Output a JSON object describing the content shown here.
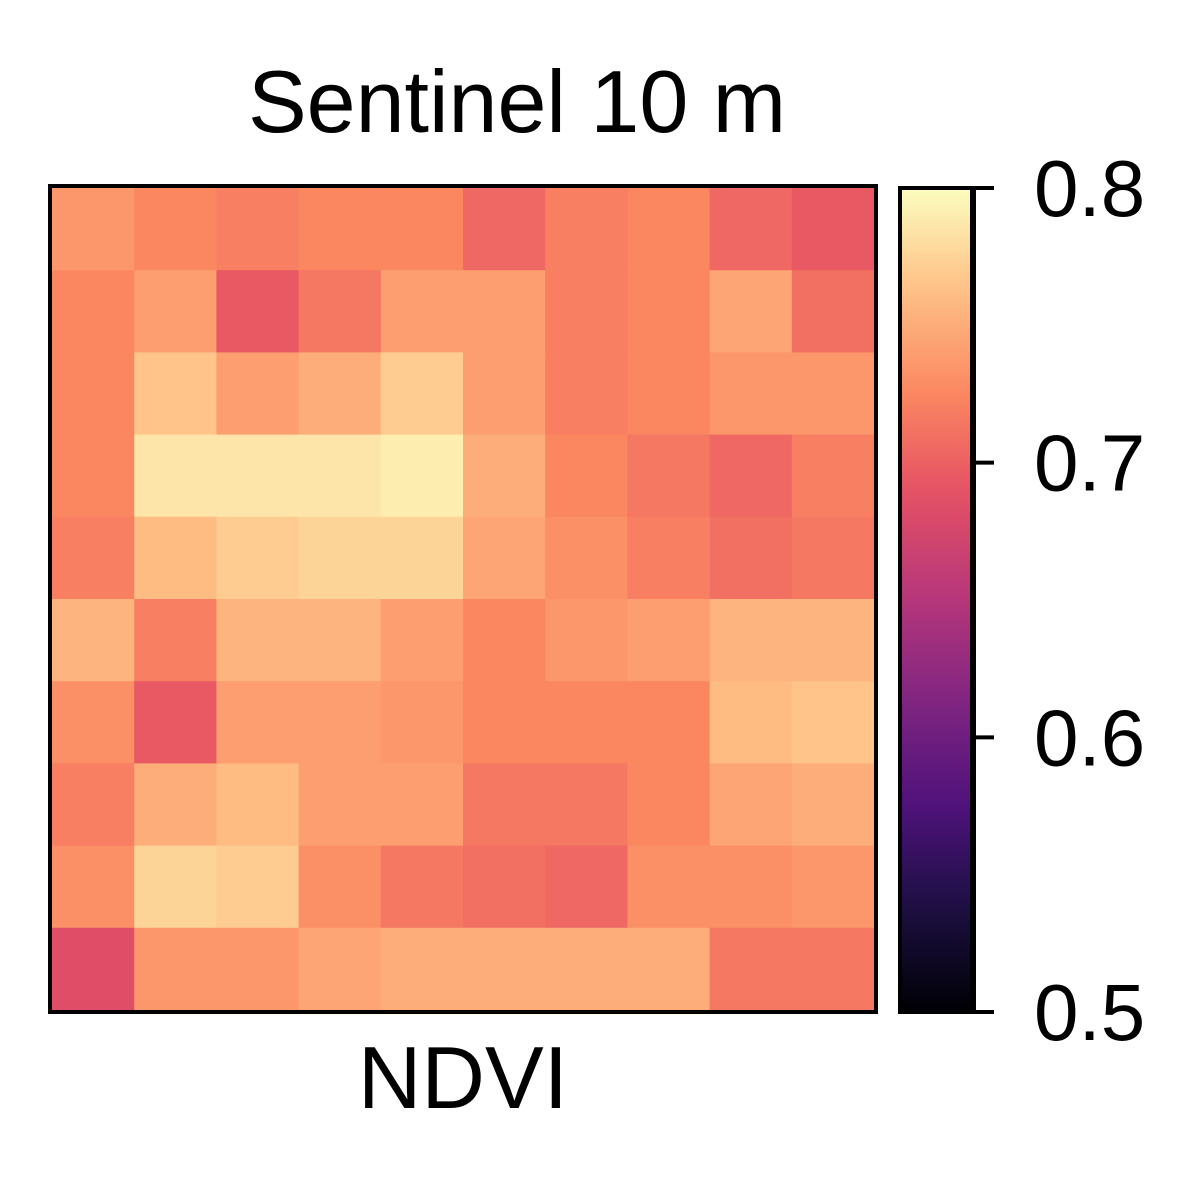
{
  "chart_data": {
    "type": "heatmap",
    "title": "Sentinel 10 m",
    "xlabel": "NDVI",
    "colormap": "magma",
    "colorbar": {
      "range": [
        0.5,
        0.8
      ],
      "ticks": [
        0.5,
        0.6,
        0.7,
        0.8
      ],
      "tick_labels": [
        "0.5",
        "0.6",
        "0.7",
        "0.8"
      ]
    },
    "rows": 10,
    "cols": 10,
    "values": [
      [
        0.735,
        0.725,
        0.72,
        0.725,
        0.725,
        0.705,
        0.72,
        0.725,
        0.705,
        0.695
      ],
      [
        0.725,
        0.74,
        0.695,
        0.715,
        0.74,
        0.74,
        0.72,
        0.725,
        0.745,
        0.71
      ],
      [
        0.725,
        0.765,
        0.74,
        0.75,
        0.77,
        0.74,
        0.72,
        0.725,
        0.735,
        0.735
      ],
      [
        0.725,
        0.785,
        0.785,
        0.785,
        0.79,
        0.75,
        0.725,
        0.715,
        0.705,
        0.72
      ],
      [
        0.72,
        0.76,
        0.77,
        0.775,
        0.775,
        0.745,
        0.73,
        0.72,
        0.71,
        0.715
      ],
      [
        0.755,
        0.72,
        0.755,
        0.755,
        0.74,
        0.725,
        0.735,
        0.74,
        0.755,
        0.755
      ],
      [
        0.73,
        0.695,
        0.74,
        0.74,
        0.735,
        0.725,
        0.725,
        0.725,
        0.76,
        0.765
      ],
      [
        0.72,
        0.75,
        0.76,
        0.74,
        0.74,
        0.715,
        0.715,
        0.725,
        0.745,
        0.75
      ],
      [
        0.73,
        0.775,
        0.77,
        0.73,
        0.715,
        0.71,
        0.705,
        0.73,
        0.73,
        0.735
      ],
      [
        0.685,
        0.735,
        0.735,
        0.745,
        0.75,
        0.75,
        0.75,
        0.75,
        0.715,
        0.715
      ]
    ],
    "grid": false,
    "legend": "right"
  }
}
